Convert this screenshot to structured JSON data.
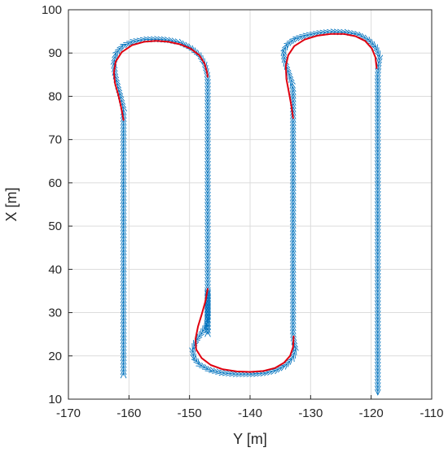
{
  "chart_data": {
    "type": "line",
    "xlabel": "Y [m]",
    "ylabel": "X [m]",
    "xlim": [
      -170,
      -110
    ],
    "ylim": [
      10,
      100
    ],
    "xticks": [
      -170,
      -160,
      -150,
      -140,
      -130,
      -120,
      -110
    ],
    "yticks": [
      10,
      20,
      30,
      40,
      50,
      60,
      70,
      80,
      90,
      100
    ],
    "xtick_labels": [
      "-170",
      "-160",
      "-150",
      "-140",
      "-130",
      "-120",
      "-110"
    ],
    "ytick_labels": [
      "10",
      "20",
      "30",
      "40",
      "50",
      "60",
      "70",
      "80",
      "90",
      "100"
    ],
    "grid": true,
    "colors": {
      "path": "#0072BD",
      "arrow_fill": "#7ec8ea",
      "curve": "#e0000f",
      "axes": "#262626",
      "grid": "#dcdcdc"
    },
    "series": [
      {
        "style": "arrows",
        "x": [
          -160.9,
          -160.9,
          -160.9,
          -160.9,
          -160.9,
          -160.9,
          -160.9,
          -160.9,
          -160.9,
          -161.3,
          -161.8,
          -162.3,
          -162.5,
          -162.2,
          -161.2,
          -159.5,
          -157.5,
          -155.5,
          -153.5,
          -151.5,
          -149.8,
          -148.4,
          -147.5,
          -147.1,
          -147.0,
          -147.0,
          -147.0,
          -147.0,
          -147.0,
          -147.0,
          -147.0,
          -147.0,
          -147.0,
          -147.0,
          -147.0,
          -147.0,
          -147.2,
          -148.0,
          -148.9,
          -149.5,
          -149.3,
          -148.4,
          -146.8,
          -144.8,
          -142.5,
          -140.0,
          -137.8,
          -135.8,
          -134.2,
          -133.0,
          -132.5,
          -132.8,
          -132.9,
          -132.9,
          -132.9,
          -132.9,
          -132.9,
          -132.9,
          -132.9,
          -132.9,
          -132.9,
          -133.1,
          -133.7,
          -134.3,
          -134.5,
          -134.0,
          -132.8,
          -131.0,
          -128.8,
          -126.5,
          -124.2,
          -122.2,
          -120.6,
          -119.3,
          -118.6,
          -118.8,
          -118.9,
          -118.9,
          -118.9,
          -118.9,
          -118.9,
          -118.9,
          -118.9,
          -118.9,
          -118.9,
          -118.9,
          -118.9,
          -118.9
        ],
        "y": [
          15.5,
          20,
          30,
          40,
          50,
          60,
          70,
          74.5,
          77,
          79.5,
          82,
          85,
          87.5,
          89.8,
          91.5,
          92.6,
          93.1,
          93.2,
          93.0,
          92.4,
          91.2,
          89.6,
          87.5,
          85.3,
          84,
          80,
          70,
          60,
          50,
          40,
          35,
          30,
          25,
          35,
          32,
          29,
          27.2,
          25.3,
          23.5,
          21.5,
          19.6,
          18.0,
          16.8,
          16.1,
          15.8,
          15.8,
          16.0,
          16.6,
          17.7,
          19.4,
          21.4,
          23.5,
          25,
          30,
          40,
          50,
          60,
          70,
          75,
          78.5,
          81,
          83.2,
          85.7,
          88.2,
          90.2,
          91.8,
          93.1,
          94.0,
          94.6,
          94.9,
          94.8,
          94.3,
          93.2,
          91.5,
          89.2,
          87.3,
          85,
          80,
          70,
          60,
          50,
          40,
          30,
          25,
          20,
          15,
          12,
          11
        ]
      },
      {
        "style": "line",
        "x": [
          -160.9,
          -161.3,
          -161.8,
          -162.3,
          -162.5,
          -162.2,
          -161.2,
          -159.5,
          -157.5,
          -155.5,
          -153.5,
          -151.5,
          -149.8,
          -148.4,
          -147.5,
          -147.1,
          -147.0
        ],
        "y": [
          74.5,
          77.5,
          80.5,
          83,
          85.5,
          88,
          90.2,
          91.8,
          92.6,
          92.8,
          92.6,
          92.0,
          91.0,
          89.5,
          87.5,
          85.5,
          84.5
        ]
      },
      {
        "style": "line",
        "x": [
          -147.0,
          -147.4,
          -148.0,
          -148.6,
          -149.0,
          -148.9,
          -148.0,
          -146.5,
          -144.5,
          -142.2,
          -140.0,
          -137.8,
          -135.9,
          -134.4,
          -133.4,
          -132.9,
          -132.8
        ],
        "y": [
          35.5,
          32.5,
          29.5,
          26.8,
          24.0,
          21.5,
          19.5,
          17.9,
          16.9,
          16.4,
          16.3,
          16.5,
          17.2,
          18.4,
          20.0,
          22.0,
          24.5
        ]
      },
      {
        "style": "line",
        "x": [
          -132.9,
          -133.2,
          -133.6,
          -134.0,
          -134.1,
          -133.7,
          -132.7,
          -131.0,
          -128.9,
          -126.7,
          -124.5,
          -122.6,
          -121.0,
          -119.9,
          -119.3,
          -119.1
        ],
        "y": [
          75,
          78,
          81,
          84,
          87,
          89.5,
          91.6,
          93.1,
          94.0,
          94.4,
          94.4,
          93.9,
          92.8,
          91.1,
          89.0,
          86.5
        ]
      }
    ]
  }
}
